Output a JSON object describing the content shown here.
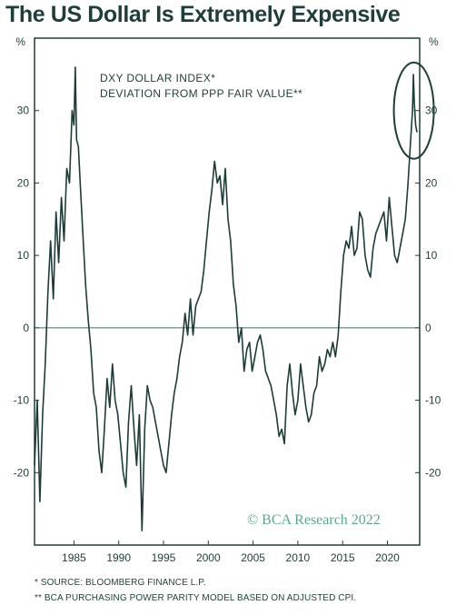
{
  "title": "The US Dollar Is Extremely Expensive",
  "colors": {
    "text": "#1f3d3a",
    "line": "#1d3b38",
    "zero_line": "#3f6a66",
    "watermark": "#5fa58d"
  },
  "chart_data": {
    "type": "line",
    "annotation_lines": [
      "DXY DOLLAR INDEX*",
      "DEVIATION FROM PPP FAIR VALUE**"
    ],
    "left_unit": "%",
    "right_unit": "%",
    "xlim": [
      1980.6,
      2023.6
    ],
    "ylim": [
      -30,
      40
    ],
    "x_ticks": [
      1985,
      1990,
      1995,
      2000,
      2005,
      2010,
      2015,
      2020
    ],
    "y_ticks": [
      -20,
      -10,
      0,
      10,
      20,
      30
    ],
    "watermark": "© BCA Research 2022",
    "highlight": "ellipse around the latest values",
    "series": [
      {
        "values": [
          [
            1980.6,
            -19
          ],
          [
            1980.9,
            -10
          ],
          [
            1981.2,
            -24
          ],
          [
            1981.5,
            -12
          ],
          [
            1981.8,
            -5
          ],
          [
            1982.1,
            5
          ],
          [
            1982.4,
            12
          ],
          [
            1982.7,
            4
          ],
          [
            1983.0,
            16
          ],
          [
            1983.3,
            9
          ],
          [
            1983.6,
            18
          ],
          [
            1983.9,
            12
          ],
          [
            1984.2,
            22
          ],
          [
            1984.5,
            20
          ],
          [
            1984.8,
            30
          ],
          [
            1985.0,
            28
          ],
          [
            1985.15,
            36
          ],
          [
            1985.3,
            26
          ],
          [
            1985.5,
            25
          ],
          [
            1985.7,
            20
          ],
          [
            1986.0,
            13
          ],
          [
            1986.3,
            6
          ],
          [
            1986.6,
            1
          ],
          [
            1986.9,
            -3
          ],
          [
            1987.2,
            -9
          ],
          [
            1987.5,
            -11
          ],
          [
            1987.8,
            -17
          ],
          [
            1988.1,
            -20
          ],
          [
            1988.4,
            -14
          ],
          [
            1988.7,
            -7
          ],
          [
            1989.0,
            -11
          ],
          [
            1989.3,
            -5
          ],
          [
            1989.6,
            -10
          ],
          [
            1989.9,
            -12
          ],
          [
            1990.2,
            -16
          ],
          [
            1990.5,
            -20
          ],
          [
            1990.8,
            -22
          ],
          [
            1991.1,
            -13
          ],
          [
            1991.4,
            -8
          ],
          [
            1991.7,
            -14
          ],
          [
            1992.0,
            -19
          ],
          [
            1992.3,
            -12
          ],
          [
            1992.6,
            -28
          ],
          [
            1992.9,
            -14
          ],
          [
            1993.2,
            -8
          ],
          [
            1993.5,
            -10
          ],
          [
            1993.8,
            -11
          ],
          [
            1994.1,
            -13
          ],
          [
            1994.4,
            -15
          ],
          [
            1994.7,
            -17
          ],
          [
            1995.0,
            -19
          ],
          [
            1995.3,
            -20
          ],
          [
            1995.6,
            -16
          ],
          [
            1995.9,
            -12
          ],
          [
            1996.2,
            -9
          ],
          [
            1996.5,
            -7
          ],
          [
            1996.8,
            -4
          ],
          [
            1997.1,
            -2
          ],
          [
            1997.4,
            2
          ],
          [
            1997.7,
            -1
          ],
          [
            1998.0,
            4
          ],
          [
            1998.3,
            -1
          ],
          [
            1998.6,
            3
          ],
          [
            1998.9,
            4
          ],
          [
            1999.2,
            5
          ],
          [
            1999.5,
            8
          ],
          [
            1999.8,
            12
          ],
          [
            2000.1,
            16
          ],
          [
            2000.4,
            19
          ],
          [
            2000.7,
            23
          ],
          [
            2001.0,
            20
          ],
          [
            2001.3,
            21
          ],
          [
            2001.6,
            17
          ],
          [
            2001.9,
            22
          ],
          [
            2002.2,
            15
          ],
          [
            2002.5,
            12
          ],
          [
            2002.8,
            6
          ],
          [
            2003.1,
            3
          ],
          [
            2003.4,
            -2
          ],
          [
            2003.7,
            0
          ],
          [
            2004.0,
            -6
          ],
          [
            2004.3,
            -3
          ],
          [
            2004.6,
            -2
          ],
          [
            2004.9,
            -6
          ],
          [
            2005.2,
            -4
          ],
          [
            2005.5,
            -2
          ],
          [
            2005.8,
            -1
          ],
          [
            2006.1,
            -3
          ],
          [
            2006.4,
            -6
          ],
          [
            2006.7,
            -7
          ],
          [
            2007.0,
            -8
          ],
          [
            2007.3,
            -10
          ],
          [
            2007.6,
            -12
          ],
          [
            2007.9,
            -15
          ],
          [
            2008.2,
            -14
          ],
          [
            2008.5,
            -16
          ],
          [
            2008.8,
            -8
          ],
          [
            2009.1,
            -5
          ],
          [
            2009.4,
            -9
          ],
          [
            2009.7,
            -12
          ],
          [
            2010.0,
            -10
          ],
          [
            2010.3,
            -5
          ],
          [
            2010.6,
            -8
          ],
          [
            2010.9,
            -11
          ],
          [
            2011.2,
            -13
          ],
          [
            2011.5,
            -12
          ],
          [
            2011.8,
            -9
          ],
          [
            2012.1,
            -8
          ],
          [
            2012.4,
            -4
          ],
          [
            2012.7,
            -6
          ],
          [
            2013.0,
            -5
          ],
          [
            2013.3,
            -3
          ],
          [
            2013.6,
            -4
          ],
          [
            2013.9,
            -2
          ],
          [
            2014.2,
            -4
          ],
          [
            2014.5,
            -1
          ],
          [
            2014.8,
            5
          ],
          [
            2015.1,
            10
          ],
          [
            2015.4,
            12
          ],
          [
            2015.7,
            11
          ],
          [
            2016.0,
            14
          ],
          [
            2016.3,
            10
          ],
          [
            2016.6,
            11
          ],
          [
            2016.9,
            16
          ],
          [
            2017.2,
            15
          ],
          [
            2017.5,
            10
          ],
          [
            2017.8,
            8
          ],
          [
            2018.1,
            7
          ],
          [
            2018.4,
            11
          ],
          [
            2018.7,
            13
          ],
          [
            2019.0,
            14
          ],
          [
            2019.3,
            15
          ],
          [
            2019.6,
            16
          ],
          [
            2019.9,
            12
          ],
          [
            2020.2,
            18
          ],
          [
            2020.5,
            14
          ],
          [
            2020.8,
            10
          ],
          [
            2021.1,
            9
          ],
          [
            2021.4,
            11
          ],
          [
            2021.7,
            13
          ],
          [
            2022.0,
            15
          ],
          [
            2022.3,
            20
          ],
          [
            2022.6,
            26
          ],
          [
            2022.8,
            30
          ],
          [
            2022.9,
            35
          ],
          [
            2023.0,
            31
          ],
          [
            2023.15,
            28
          ],
          [
            2023.3,
            27
          ]
        ]
      }
    ]
  }
}
